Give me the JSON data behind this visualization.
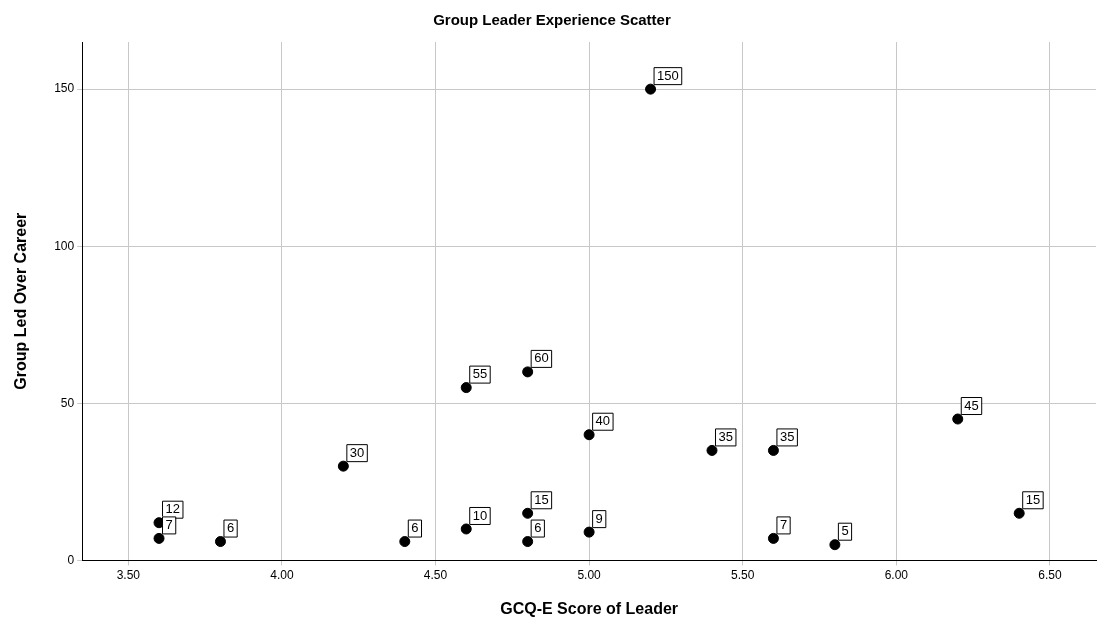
{
  "chart_data": {
    "type": "scatter",
    "title": "Group Leader Experience Scatter",
    "xlabel": "GCQ-E Score of Leader",
    "ylabel": "Group Led Over Career",
    "x": [
      3.6,
      3.6,
      3.8,
      4.2,
      4.4,
      4.6,
      4.6,
      4.8,
      4.8,
      4.8,
      5.0,
      5.0,
      5.2,
      5.4,
      5.6,
      5.6,
      5.8,
      6.2,
      6.4
    ],
    "values": [
      12,
      7,
      6,
      30,
      6,
      55,
      10,
      60,
      15,
      6,
      40,
      9,
      150,
      35,
      35,
      7,
      5,
      45,
      15
    ],
    "color": "#000000",
    "marker": "circle",
    "data_labels": true,
    "grid": true,
    "legend": false,
    "xlim": [
      3.35,
      6.65
    ],
    "xticks": [
      {
        "value": 3.5,
        "label": "3.50"
      },
      {
        "value": 4,
        "label": "4.00"
      },
      {
        "value": 4.5,
        "label": "4.50"
      },
      {
        "value": 5,
        "label": "5.00"
      },
      {
        "value": 5.5,
        "label": "5.50"
      },
      {
        "value": 6,
        "label": "6.00"
      },
      {
        "value": 6.5,
        "label": "6.50"
      }
    ],
    "ylim": [
      0,
      165
    ],
    "yticks": [
      0,
      50,
      100,
      150
    ]
  }
}
